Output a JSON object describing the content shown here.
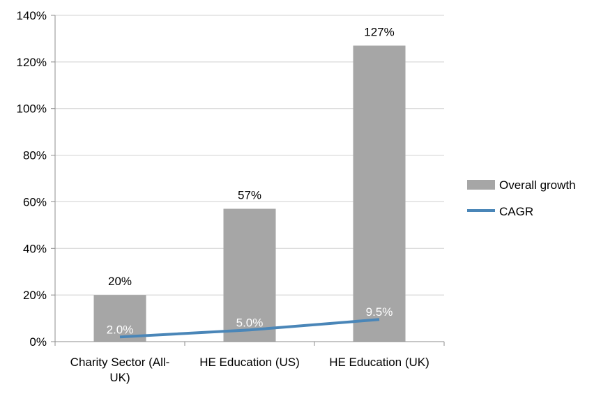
{
  "chart_data": {
    "type": "bar",
    "categories": [
      "Charity Sector (All-UK)",
      "HE Education (US)",
      "HE Education (UK)"
    ],
    "category_label_lines": [
      [
        "Charity Sector (All-",
        "UK)"
      ],
      [
        "HE Education (US)"
      ],
      [
        "HE Education (UK)"
      ]
    ],
    "series": [
      {
        "name": "Overall growth",
        "type": "bar",
        "values": [
          20,
          57,
          127
        ],
        "labels": [
          "20%",
          "57%",
          "127%"
        ],
        "color": "#a6a6a6"
      },
      {
        "name": "CAGR",
        "type": "line",
        "values": [
          2.0,
          5.0,
          9.5
        ],
        "labels": [
          "2.0%",
          "5.0%",
          "9.5%"
        ],
        "color": "#4a86b8"
      }
    ],
    "y_ticks": [
      "0%",
      "20%",
      "40%",
      "60%",
      "80%",
      "100%",
      "120%",
      "140%"
    ],
    "ylim": [
      0,
      140
    ],
    "title": "",
    "xlabel": "",
    "ylabel": "",
    "grid": true,
    "legend_position": "right"
  }
}
